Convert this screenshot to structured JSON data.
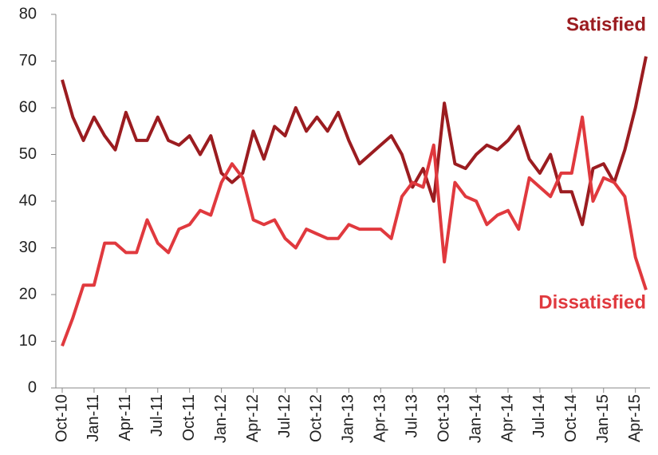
{
  "chart_data": {
    "type": "line",
    "categories": [
      "Oct-10",
      null,
      null,
      "Jan-11",
      null,
      null,
      "Apr-11",
      null,
      null,
      "Jul-11",
      null,
      null,
      "Oct-11",
      null,
      null,
      "Jan-12",
      null,
      null,
      "Apr-12",
      null,
      null,
      "Jul-12",
      null,
      null,
      "Oct-12",
      null,
      null,
      "Jan-13",
      null,
      null,
      "Apr-13",
      null,
      null,
      "Jul-13",
      null,
      null,
      "Oct-13",
      null,
      null,
      "Jan-14",
      null,
      null,
      "Apr-14",
      null,
      null,
      "Jul-14",
      null,
      null,
      "Oct-14",
      null,
      null,
      "Jan-15",
      null,
      null,
      "Apr-15",
      null
    ],
    "series": [
      {
        "name": "Satisfied",
        "color": "#9b1c20",
        "values": [
          66,
          58,
          53,
          58,
          54,
          51,
          59,
          53,
          53,
          58,
          53,
          52,
          54,
          50,
          54,
          46,
          44,
          46,
          55,
          49,
          56,
          54,
          60,
          55,
          58,
          55,
          59,
          53,
          48,
          50,
          52,
          54,
          50,
          43,
          47,
          40,
          61,
          48,
          47,
          50,
          52,
          51,
          53,
          56,
          49,
          46,
          50,
          42,
          42,
          35,
          47,
          48,
          44,
          51,
          60,
          71
        ]
      },
      {
        "name": "Dissatisfied",
        "color": "#e0393e",
        "values": [
          9,
          15,
          22,
          22,
          31,
          31,
          29,
          29,
          36,
          31,
          29,
          34,
          35,
          38,
          37,
          44,
          48,
          45,
          36,
          35,
          36,
          32,
          30,
          34,
          33,
          32,
          32,
          35,
          34,
          34,
          34,
          32,
          41,
          44,
          43,
          52,
          27,
          44,
          41,
          40,
          35,
          37,
          38,
          34,
          45,
          43,
          41,
          46,
          46,
          58,
          40,
          45,
          44,
          41,
          28,
          21
        ]
      }
    ],
    "ylim": [
      0,
      80
    ],
    "yticks": [
      0,
      10,
      20,
      30,
      40,
      50,
      60,
      70,
      80
    ]
  }
}
